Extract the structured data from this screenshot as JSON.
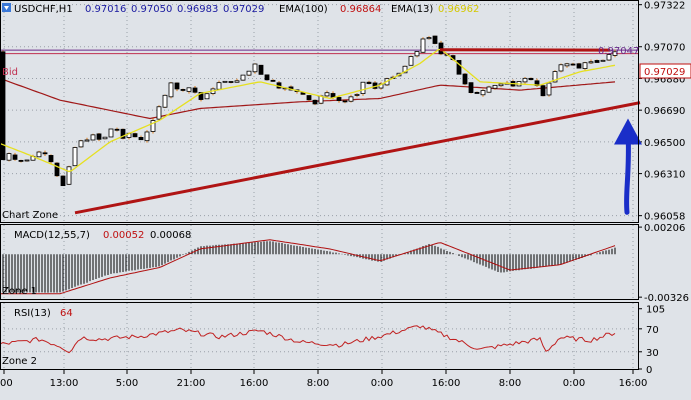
{
  "header": {
    "symbol": "USDCHF,H1",
    "o": "0.97016",
    "h": "0.97050",
    "l": "0.96983",
    "c": "0.97029",
    "ema100_label": "EMA(100)",
    "ema100_value": "0.96864",
    "ema13_label": "EMA(13)",
    "ema13_value": "0.96962"
  },
  "colors": {
    "background": "#dfe3e8",
    "grid": "#9aa0a8",
    "candle": "#000000",
    "candle_wick": "#e07a10",
    "ema13": "#e6e020",
    "ema100": "#a01818",
    "trendline": "#b01414",
    "arrow": "#1a2ec8",
    "bid_line": "#c03050",
    "resistance_line": "#6a2a8a",
    "macd_signal": "#b01010",
    "rsi_line": "#c02020",
    "label_blue": "#1a1aa0",
    "label_red": "#c01010",
    "label_yellow": "#d4c800"
  },
  "labels": {
    "bid": "Bid",
    "chart_zone": "Chart Zone",
    "zone1": "Zone 1",
    "zone2": "Zone 2",
    "resistance_price": "0.97047",
    "bid_price": "0.97029"
  },
  "chart_data": [
    {
      "type": "candlestick",
      "panel": "price",
      "ylim": [
        0.9602,
        0.9735
      ],
      "yticks": [
        "0.97322",
        "0.97070",
        "0.96880",
        "0.96690",
        "0.96500",
        "0.96310",
        "0.96058"
      ],
      "ytick_values": [
        0.97322,
        0.9707,
        0.9688,
        0.9669,
        0.965,
        0.9631,
        0.96058
      ],
      "xticks": [
        "00",
        "13:00",
        "5:00",
        "21:00",
        "16:00",
        "8:00",
        "0:00",
        "16:00",
        "8:00",
        "0:00",
        "16:00"
      ],
      "anchors": [
        [
          0,
          0.9642
        ],
        [
          6,
          0.9638
        ],
        [
          12,
          0.9645
        ],
        [
          18,
          0.9636
        ],
        [
          24,
          0.964
        ],
        [
          30,
          0.9639
        ],
        [
          36,
          0.9642
        ],
        [
          42,
          0.9645
        ],
        [
          48,
          0.9641
        ],
        [
          54,
          0.9636
        ],
        [
          60,
          0.9626
        ],
        [
          66,
          0.9623
        ],
        [
          72,
          0.9642
        ],
        [
          78,
          0.9649
        ],
        [
          84,
          0.9652
        ],
        [
          90,
          0.965
        ],
        [
          96,
          0.9657
        ],
        [
          102,
          0.9649
        ],
        [
          108,
          0.9655
        ],
        [
          114,
          0.9659
        ],
        [
          120,
          0.9656
        ],
        [
          126,
          0.9651
        ],
        [
          132,
          0.9657
        ],
        [
          138,
          0.9651
        ],
        [
          144,
          0.9651
        ],
        [
          150,
          0.9658
        ],
        [
          156,
          0.9666
        ],
        [
          162,
          0.9674
        ],
        [
          168,
          0.9679
        ],
        [
          174,
          0.9688
        ],
        [
          180,
          0.9679
        ],
        [
          186,
          0.9681
        ],
        [
          192,
          0.9683
        ],
        [
          198,
          0.9678
        ],
        [
          204,
          0.9674
        ],
        [
          210,
          0.9682
        ],
        [
          216,
          0.9681
        ],
        [
          222,
          0.9688
        ],
        [
          228,
          0.9686
        ],
        [
          234,
          0.9685
        ],
        [
          240,
          0.9688
        ],
        [
          246,
          0.9691
        ],
        [
          252,
          0.9693
        ],
        [
          258,
          0.9698
        ],
        [
          264,
          0.9686
        ],
        [
          270,
          0.9688
        ],
        [
          276,
          0.9685
        ],
        [
          282,
          0.968
        ],
        [
          288,
          0.9684
        ],
        [
          294,
          0.968
        ],
        [
          300,
          0.968
        ],
        [
          306,
          0.9677
        ],
        [
          312,
          0.9674
        ],
        [
          318,
          0.9672
        ],
        [
          324,
          0.9681
        ],
        [
          330,
          0.9678
        ],
        [
          336,
          0.9676
        ],
        [
          342,
          0.9674
        ],
        [
          348,
          0.9674
        ],
        [
          354,
          0.9679
        ],
        [
          360,
          0.9679
        ],
        [
          366,
          0.9689
        ],
        [
          372,
          0.9683
        ],
        [
          378,
          0.9682
        ],
        [
          384,
          0.9686
        ],
        [
          390,
          0.9688
        ],
        [
          396,
          0.969
        ],
        [
          402,
          0.9692
        ],
        [
          408,
          0.9697
        ],
        [
          414,
          0.9704
        ],
        [
          420,
          0.9704
        ],
        [
          426,
          0.9715
        ],
        [
          432,
          0.9712
        ],
        [
          438,
          0.9708
        ],
        [
          444,
          0.97
        ],
        [
          450,
          0.9703
        ],
        [
          456,
          0.9697
        ],
        [
          462,
          0.9687
        ],
        [
          468,
          0.9684
        ],
        [
          474,
          0.9678
        ],
        [
          480,
          0.9679
        ],
        [
          486,
          0.9681
        ],
        [
          492,
          0.9683
        ],
        [
          498,
          0.9684
        ],
        [
          504,
          0.9685
        ],
        [
          510,
          0.9686
        ],
        [
          516,
          0.9683
        ],
        [
          522,
          0.9687
        ],
        [
          528,
          0.9689
        ],
        [
          534,
          0.9686
        ],
        [
          540,
          0.9682
        ],
        [
          546,
          0.9676
        ],
        [
          552,
          0.969
        ],
        [
          558,
          0.9694
        ],
        [
          564,
          0.9697
        ],
        [
          570,
          0.9696
        ],
        [
          576,
          0.9697
        ],
        [
          582,
          0.9693
        ],
        [
          588,
          0.9699
        ],
        [
          594,
          0.9698
        ],
        [
          600,
          0.9698
        ],
        [
          606,
          0.97
        ],
        [
          612,
          0.9703
        ],
        [
          617,
          0.9704
        ]
      ],
      "trendline": [
        [
          75,
          0.96075
        ],
        [
          640,
          0.96735
        ]
      ],
      "resistance": [
        [
          440,
          0.97052
        ],
        [
          610,
          0.9705
        ]
      ],
      "bid_level": 0.97029,
      "ema100": [
        [
          0,
          0.9688
        ],
        [
          60,
          0.9675
        ],
        [
          150,
          0.9664
        ],
        [
          200,
          0.967
        ],
        [
          300,
          0.9674
        ],
        [
          380,
          0.9676
        ],
        [
          440,
          0.9684
        ],
        [
          520,
          0.9681
        ],
        [
          616,
          0.9686
        ]
      ],
      "ema13": [
        [
          0,
          0.9649
        ],
        [
          30,
          0.9642
        ],
        [
          70,
          0.9632
        ],
        [
          110,
          0.965
        ],
        [
          160,
          0.9663
        ],
        [
          200,
          0.9679
        ],
        [
          260,
          0.9686
        ],
        [
          330,
          0.9676
        ],
        [
          380,
          0.9684
        ],
        [
          420,
          0.9697
        ],
        [
          440,
          0.9706
        ],
        [
          480,
          0.9686
        ],
        [
          540,
          0.9684
        ],
        [
          580,
          0.9692
        ],
        [
          616,
          0.9696
        ]
      ],
      "arrow": [
        [
          627,
          0.96078
        ],
        [
          627,
          0.9664
        ]
      ]
    },
    {
      "type": "histogram",
      "panel": "macd",
      "title": "MACD(12,55,7)",
      "main_value": "0.00052",
      "signal_value": "0.00068",
      "ylim": [
        -0.0034,
        0.00222
      ],
      "yticks": [
        "0.00206",
        "-0.00326"
      ],
      "ytick_values": [
        0.00206,
        -0.00326
      ],
      "anchors": [
        [
          0,
          -0.0029
        ],
        [
          60,
          -0.0029
        ],
        [
          110,
          -0.0015
        ],
        [
          160,
          -0.0009
        ],
        [
          200,
          0.0006
        ],
        [
          270,
          0.001
        ],
        [
          330,
          0.0002
        ],
        [
          380,
          -0.0006
        ],
        [
          430,
          0.0008
        ],
        [
          500,
          -0.0014
        ],
        [
          560,
          -0.0008
        ],
        [
          616,
          0.00052
        ]
      ],
      "signal": [
        [
          0,
          -0.003
        ],
        [
          60,
          -0.003
        ],
        [
          110,
          -0.0018
        ],
        [
          160,
          -0.001
        ],
        [
          200,
          0.0004
        ],
        [
          270,
          0.0011
        ],
        [
          330,
          0.0004
        ],
        [
          380,
          -0.0005
        ],
        [
          440,
          0.0009
        ],
        [
          510,
          -0.0012
        ],
        [
          560,
          -0.0008
        ],
        [
          616,
          0.00068
        ]
      ]
    },
    {
      "type": "line",
      "panel": "rsi",
      "title": "RSI(13)",
      "value": "64",
      "ylim": [
        0,
        115
      ],
      "yticks": [
        "105",
        "70",
        "30",
        "0"
      ],
      "ytick_values": [
        105,
        70,
        30,
        0
      ],
      "anchors": [
        [
          0,
          43
        ],
        [
          20,
          47
        ],
        [
          40,
          52
        ],
        [
          60,
          40
        ],
        [
          70,
          30
        ],
        [
          80,
          55
        ],
        [
          100,
          52
        ],
        [
          140,
          57
        ],
        [
          180,
          68
        ],
        [
          220,
          56
        ],
        [
          260,
          67
        ],
        [
          300,
          47
        ],
        [
          340,
          42
        ],
        [
          380,
          57
        ],
        [
          420,
          75
        ],
        [
          450,
          55
        ],
        [
          480,
          34
        ],
        [
          510,
          43
        ],
        [
          540,
          52
        ],
        [
          546,
          30
        ],
        [
          560,
          55
        ],
        [
          590,
          50
        ],
        [
          616,
          64
        ]
      ]
    }
  ]
}
